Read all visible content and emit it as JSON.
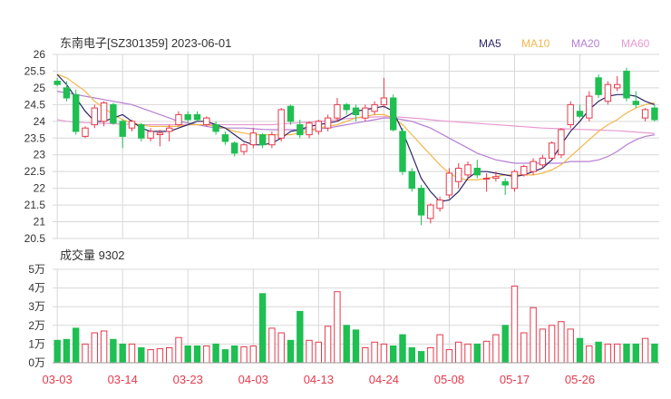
{
  "title": "东南电子[SZ301359] 2023-06-01",
  "legend": [
    {
      "label": "MA5",
      "color": "#2c2566"
    },
    {
      "label": "MA10",
      "color": "#f2b74a"
    },
    {
      "label": "MA20",
      "color": "#b77fd4"
    },
    {
      "label": "MA60",
      "color": "#e79ad3"
    }
  ],
  "volume_label": "成交量 9302",
  "colors": {
    "up": "#e63a4c",
    "down": "#1fbf52",
    "grid": "#d8d8d8",
    "axis": "#333333"
  },
  "chart_data": [
    {
      "type": "candlestick",
      "ylim": [
        20.5,
        26
      ],
      "yticks": [
        "26",
        "25.5",
        "25",
        "24.5",
        "24",
        "23.5",
        "23",
        "22.5",
        "22",
        "21.5",
        "21",
        "20.5"
      ],
      "xticks": [
        {
          "label": "03-03",
          "index": 0
        },
        {
          "label": "03-14",
          "index": 7
        },
        {
          "label": "03-23",
          "index": 14
        },
        {
          "label": "04-03",
          "index": 21
        },
        {
          "label": "04-13",
          "index": 28
        },
        {
          "label": "04-24",
          "index": 35
        },
        {
          "label": "05-08",
          "index": 42
        },
        {
          "label": "05-17",
          "index": 49
        },
        {
          "label": "05-26",
          "index": 56
        }
      ],
      "candles": [
        [
          25.2,
          25.3,
          25.05,
          25.1
        ],
        [
          25.0,
          25.2,
          24.6,
          24.7
        ],
        [
          24.8,
          24.95,
          23.6,
          23.7
        ],
        [
          23.55,
          23.85,
          23.5,
          23.8
        ],
        [
          23.9,
          24.5,
          23.8,
          24.4
        ],
        [
          24.0,
          24.6,
          23.85,
          24.55
        ],
        [
          24.5,
          24.55,
          23.9,
          23.95
        ],
        [
          24.0,
          24.05,
          23.2,
          23.55
        ],
        [
          23.8,
          24.05,
          23.7,
          24.0
        ],
        [
          23.9,
          23.95,
          23.4,
          23.5
        ],
        [
          23.5,
          23.8,
          23.4,
          23.7
        ],
        [
          23.6,
          23.75,
          23.25,
          23.65
        ],
        [
          23.7,
          23.9,
          23.4,
          23.8
        ],
        [
          23.9,
          24.3,
          23.85,
          24.2
        ],
        [
          24.2,
          24.3,
          23.95,
          24.05
        ],
        [
          24.2,
          24.3,
          24.0,
          24.05
        ],
        [
          23.9,
          24.15,
          23.85,
          24.1
        ],
        [
          23.9,
          24.0,
          23.6,
          23.7
        ],
        [
          23.6,
          23.7,
          23.3,
          23.4
        ],
        [
          23.35,
          23.4,
          22.95,
          23.05
        ],
        [
          23.1,
          23.35,
          23.0,
          23.3
        ],
        [
          23.3,
          23.8,
          23.2,
          23.65
        ],
        [
          23.6,
          23.65,
          23.2,
          23.3
        ],
        [
          23.3,
          23.7,
          23.2,
          23.6
        ],
        [
          23.5,
          24.4,
          23.4,
          24.35
        ],
        [
          24.45,
          24.5,
          23.9,
          24.0
        ],
        [
          23.9,
          24.05,
          23.5,
          23.6
        ],
        [
          23.6,
          24.0,
          23.5,
          23.95
        ],
        [
          23.7,
          24.05,
          23.6,
          24.0
        ],
        [
          23.8,
          24.2,
          23.7,
          24.1
        ],
        [
          24.1,
          24.7,
          24.0,
          24.5
        ],
        [
          24.5,
          24.55,
          24.2,
          24.35
        ],
        [
          24.4,
          24.5,
          24.0,
          24.2
        ],
        [
          24.1,
          24.5,
          24.0,
          24.4
        ],
        [
          24.3,
          24.6,
          24.2,
          24.5
        ],
        [
          24.5,
          25.3,
          24.4,
          24.7
        ],
        [
          24.7,
          24.8,
          23.7,
          23.75
        ],
        [
          23.7,
          23.8,
          22.4,
          22.5
        ],
        [
          22.5,
          22.6,
          21.9,
          22.0
        ],
        [
          22.0,
          22.1,
          20.9,
          21.2
        ],
        [
          21.1,
          21.55,
          20.95,
          21.5
        ],
        [
          21.4,
          21.75,
          21.3,
          21.65
        ],
        [
          21.8,
          22.6,
          21.7,
          22.45
        ],
        [
          22.2,
          22.75,
          22.0,
          22.6
        ],
        [
          22.4,
          22.8,
          22.3,
          22.7
        ],
        [
          22.6,
          22.85,
          22.3,
          22.4
        ],
        [
          22.3,
          22.45,
          21.9,
          22.3
        ],
        [
          22.3,
          22.5,
          22.2,
          22.35
        ],
        [
          22.2,
          22.3,
          21.8,
          22.1
        ],
        [
          22.0,
          22.55,
          21.9,
          22.5
        ],
        [
          22.4,
          22.7,
          22.35,
          22.65
        ],
        [
          22.5,
          22.9,
          22.4,
          22.8
        ],
        [
          22.7,
          23.0,
          22.6,
          22.9
        ],
        [
          22.9,
          23.4,
          22.85,
          23.35
        ],
        [
          23.0,
          23.8,
          22.9,
          23.75
        ],
        [
          23.9,
          24.6,
          23.8,
          24.5
        ],
        [
          24.3,
          24.5,
          24.1,
          24.15
        ],
        [
          24.1,
          24.9,
          24.0,
          24.75
        ],
        [
          25.3,
          25.4,
          24.7,
          24.8
        ],
        [
          24.6,
          25.2,
          24.5,
          25.1
        ],
        [
          25.0,
          25.35,
          24.9,
          25.1
        ],
        [
          25.5,
          25.6,
          24.6,
          24.7
        ],
        [
          24.6,
          24.9,
          24.4,
          24.5
        ],
        [
          24.1,
          24.4,
          24.0,
          24.35
        ],
        [
          24.4,
          24.5,
          24.0,
          24.05
        ]
      ],
      "ma5": [
        25.4,
        25.1,
        24.7,
        24.3,
        24.0,
        24.0,
        24.1,
        24.2,
        24.0,
        23.8,
        23.7,
        23.7,
        23.7,
        23.8,
        23.9,
        24.0,
        24.0,
        23.9,
        23.8,
        23.6,
        23.4,
        23.3,
        23.3,
        23.35,
        23.5,
        23.7,
        23.75,
        23.85,
        23.9,
        23.95,
        24.0,
        24.15,
        24.3,
        24.35,
        24.4,
        24.45,
        24.3,
        23.7,
        23.0,
        22.3,
        21.9,
        21.6,
        21.65,
        21.9,
        22.3,
        22.5,
        22.5,
        22.45,
        22.4,
        22.35,
        22.4,
        22.5,
        22.6,
        22.85,
        23.3,
        23.7,
        24.0,
        24.35,
        24.6,
        24.75,
        24.8,
        24.8,
        24.75,
        24.6,
        24.5
      ],
      "ma10": [
        25.4,
        25.3,
        25.1,
        24.9,
        24.6,
        24.4,
        24.2,
        24.05,
        23.95,
        23.9,
        23.85,
        23.85,
        23.85,
        23.85,
        23.9,
        23.9,
        23.9,
        23.85,
        23.8,
        23.7,
        23.65,
        23.6,
        23.6,
        23.6,
        23.6,
        23.6,
        23.65,
        23.7,
        23.8,
        23.85,
        23.9,
        24.0,
        24.1,
        24.15,
        24.2,
        24.2,
        24.1,
        23.9,
        23.6,
        23.3,
        23.0,
        22.7,
        22.45,
        22.3,
        22.25,
        22.25,
        22.3,
        22.35,
        22.4,
        22.4,
        22.4,
        22.4,
        22.45,
        22.55,
        22.7,
        22.95,
        23.2,
        23.45,
        23.7,
        23.9,
        24.05,
        24.25,
        24.4,
        24.5,
        24.55
      ],
      "ma20": [
        24.9,
        24.85,
        24.8,
        24.75,
        24.7,
        24.65,
        24.6,
        24.55,
        24.5,
        24.4,
        24.3,
        24.2,
        24.1,
        24.0,
        23.95,
        23.9,
        23.85,
        23.8,
        23.8,
        23.8,
        23.8,
        23.78,
        23.76,
        23.75,
        23.75,
        23.75,
        23.75,
        23.76,
        23.78,
        23.8,
        23.85,
        23.9,
        23.95,
        24.0,
        24.05,
        24.1,
        24.1,
        24.05,
        24.0,
        23.9,
        23.8,
        23.65,
        23.5,
        23.35,
        23.2,
        23.05,
        22.95,
        22.85,
        22.8,
        22.75,
        22.75,
        22.75,
        22.75,
        22.75,
        22.75,
        22.8,
        22.8,
        22.8,
        22.85,
        22.95,
        23.1,
        23.3,
        23.45,
        23.55,
        23.6
      ],
      "ma60": [
        24.05,
        24.0,
        23.98,
        23.96,
        23.95,
        23.94,
        23.93,
        23.92,
        23.91,
        23.9,
        23.9,
        23.9,
        23.9,
        23.9,
        23.9,
        23.9,
        23.9,
        23.9,
        23.9,
        23.9,
        23.9,
        23.9,
        23.9,
        23.9,
        23.92,
        23.94,
        23.96,
        23.98,
        24.0,
        24.02,
        24.05,
        24.08,
        24.1,
        24.12,
        24.13,
        24.14,
        24.14,
        24.12,
        24.1,
        24.08,
        24.05,
        24.02,
        24.0,
        23.98,
        23.96,
        23.94,
        23.92,
        23.9,
        23.88,
        23.86,
        23.84,
        23.82,
        23.8,
        23.79,
        23.78,
        23.77,
        23.76,
        23.75,
        23.74,
        23.73,
        23.72,
        23.7,
        23.68,
        23.66,
        23.64
      ]
    },
    {
      "type": "bar",
      "ylabel": "成交量",
      "ylim": [
        0,
        5
      ],
      "yticks": [
        "5万",
        "4万",
        "3万",
        "2万",
        "1万",
        "0万"
      ],
      "values": [
        1.2,
        1.25,
        1.85,
        1.0,
        1.6,
        1.7,
        1.25,
        1.0,
        1.0,
        0.8,
        0.7,
        0.75,
        0.8,
        1.35,
        0.9,
        0.9,
        0.9,
        1.0,
        0.7,
        0.9,
        0.85,
        0.9,
        3.7,
        1.85,
        1.6,
        1.2,
        2.75,
        1.2,
        1.1,
        1.95,
        3.8,
        2.0,
        1.75,
        0.8,
        1.1,
        1.0,
        0.9,
        1.5,
        0.8,
        0.6,
        0.8,
        1.5,
        0.7,
        1.1,
        1.0,
        1.0,
        1.15,
        1.5,
        2.0,
        4.1,
        1.6,
        2.95,
        1.8,
        2.0,
        2.2,
        1.8,
        1.3,
        0.9,
        1.1,
        1.0,
        1.0,
        1.0,
        1.0,
        1.3,
        1.0
      ]
    }
  ]
}
